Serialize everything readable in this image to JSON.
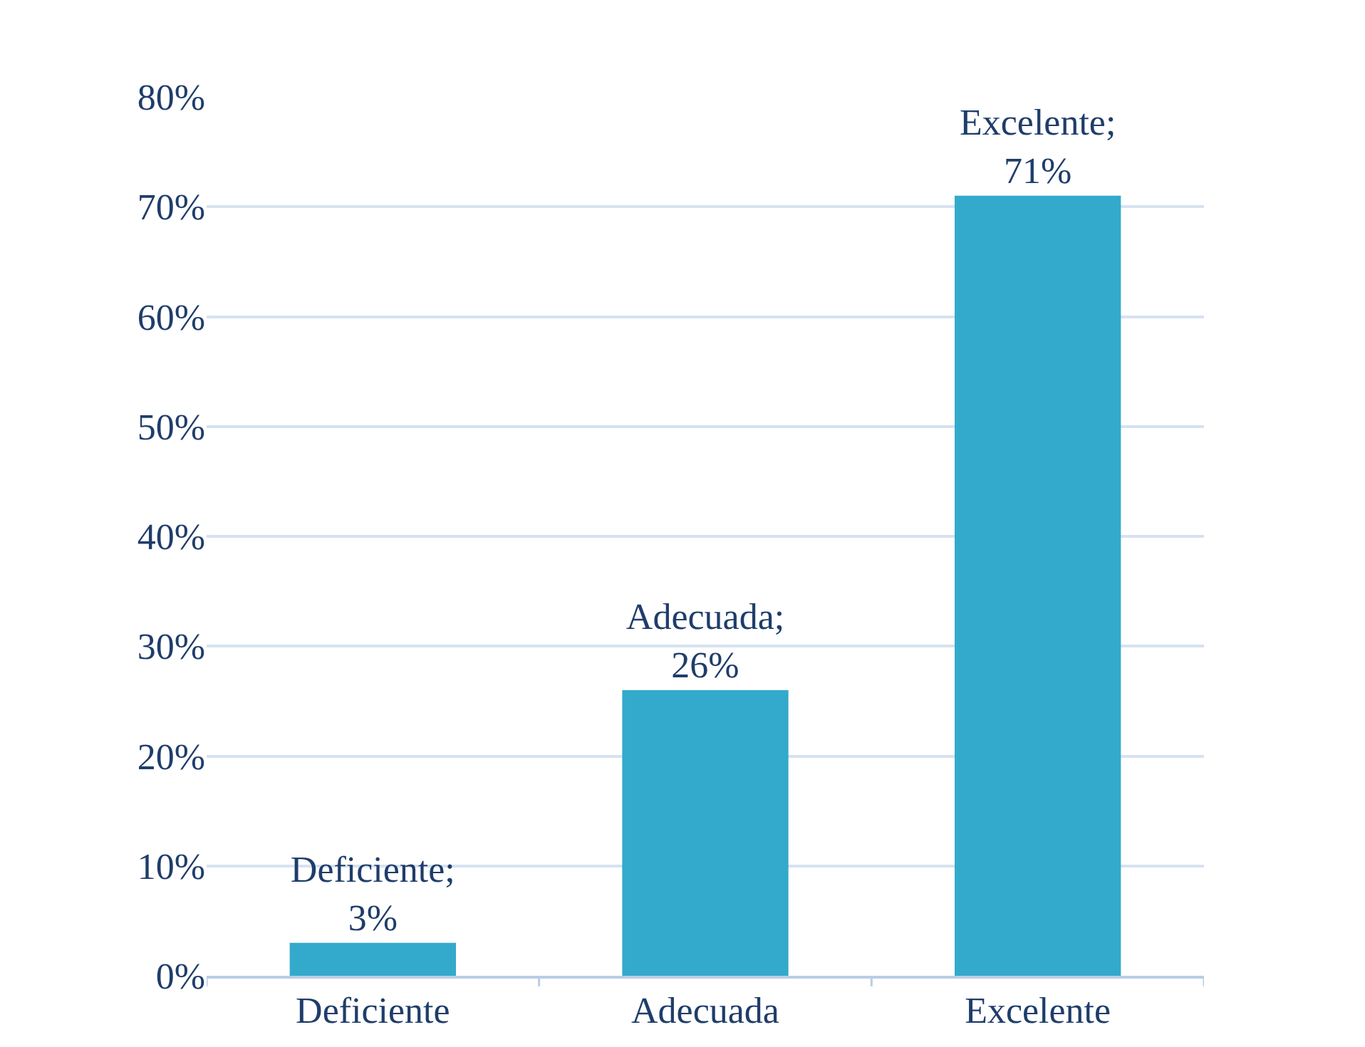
{
  "chart_data": {
    "type": "bar",
    "categories": [
      "Deficiente",
      "Adecuada",
      "Excelente"
    ],
    "values": [
      3,
      26,
      71
    ],
    "value_labels": [
      "Deficiente;\n3%",
      "Adecuada;\n26%",
      "Excelente;\n71%"
    ],
    "color": "#33aacb",
    "ylim": [
      0,
      80
    ],
    "yticks": [
      {
        "value": 0,
        "label": "0%"
      },
      {
        "value": 10,
        "label": "10%"
      },
      {
        "value": 20,
        "label": "20%"
      },
      {
        "value": 30,
        "label": "30%"
      },
      {
        "value": 40,
        "label": "40%"
      },
      {
        "value": 50,
        "label": "50%"
      },
      {
        "value": 60,
        "label": "60%"
      },
      {
        "value": 70,
        "label": "70%"
      },
      {
        "value": 80,
        "label": "80%"
      }
    ],
    "grid": "y"
  }
}
